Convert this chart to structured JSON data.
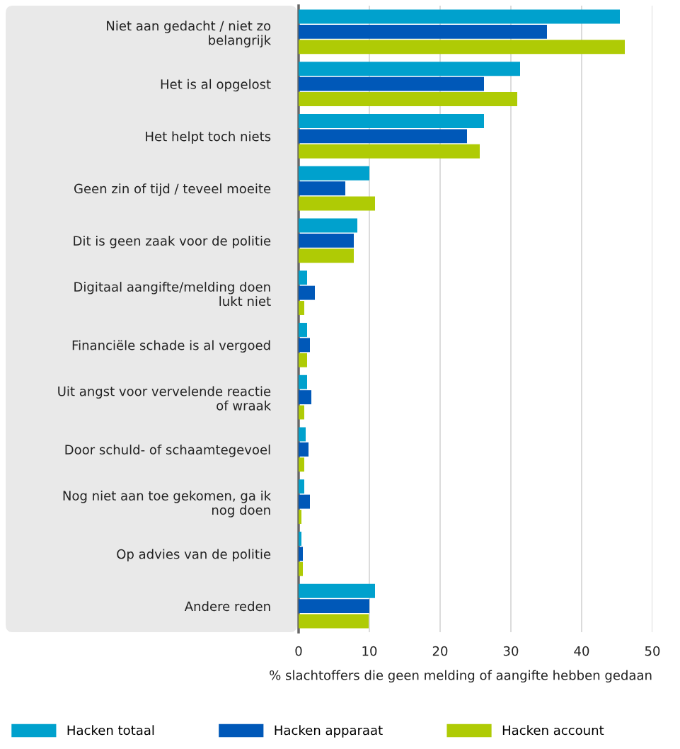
{
  "chart_data": {
    "type": "bar",
    "orientation": "horizontal",
    "xlabel": "% slachtoffers die geen melding of aangifte hebben gedaan",
    "categories": [
      "Niet aan gedacht / niet zo\nbelangrijk",
      "Het is al opgelost",
      "Het helpt toch niets",
      "Geen zin of tijd / teveel moeite",
      "Dit is geen zaak voor de politie",
      "Digitaal aangifte/melding doen\nlukt niet",
      "Financiële schade is al vergoed",
      "Uit angst voor vervelende reactie\nof wraak",
      "Door schuld- of schaamtegevoel",
      "Nog niet aan toe gekomen, ga ik\nnog doen",
      "Op advies van de politie",
      "Andere reden"
    ],
    "series": [
      {
        "name": "Hacken totaal",
        "color": "#00a1cd",
        "values": [
          45.4,
          31.3,
          26.2,
          10.0,
          8.3,
          1.2,
          1.2,
          1.2,
          1.0,
          0.8,
          0.4,
          10.8
        ]
      },
      {
        "name": "Hacken apparaat",
        "color": "#0058b8",
        "values": [
          35.1,
          26.2,
          23.8,
          6.6,
          7.8,
          2.3,
          1.6,
          1.8,
          1.4,
          1.6,
          0.6,
          10.0
        ]
      },
      {
        "name": "Hacken account",
        "color": "#afcb05",
        "values": [
          46.1,
          30.9,
          25.6,
          10.8,
          7.8,
          0.8,
          1.2,
          0.8,
          0.8,
          0.4,
          0.6,
          9.9
        ]
      }
    ],
    "xlim": [
      0,
      50
    ],
    "xticks": [
      0,
      10,
      20,
      30,
      40,
      50
    ],
    "grid": "x",
    "legend": "bottom"
  }
}
